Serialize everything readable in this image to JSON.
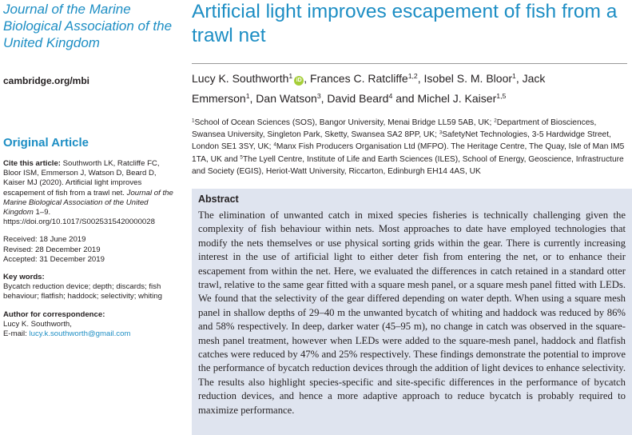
{
  "journal": {
    "name": "Journal of the Marine Biological Association of the United Kingdom",
    "url": "cambridge.org/mbi"
  },
  "article_type": "Original Article",
  "citation": {
    "label": "Cite this article:",
    "text": "Southworth LK, Ratcliffe FC, Bloor ISM, Emmerson J, Watson D, Beard D, Kaiser MJ (2020). Artificial light improves escapement of fish from a trawl net.",
    "journal": "Journal of the Marine Biological Association of the United Kingdom",
    "rest": "1–9. https://doi.org/10.1017/S0025315420000028"
  },
  "dates": [
    "Received: 18 June 2019",
    "Revised: 28 December 2019",
    "Accepted: 31 December 2019"
  ],
  "keywords": {
    "label": "Key words:",
    "text": "Bycatch reduction device; depth; discards; fish behaviour; flatfish; haddock; selectivity; whiting"
  },
  "correspondence": {
    "label": "Author for correspondence:",
    "name": "Lucy K. Southworth,",
    "email_label": "E-mail:",
    "email": "lucy.k.southworth@gmail.com"
  },
  "title": "Artificial light improves escapement of fish from a trawl net",
  "authors": [
    {
      "name": "Lucy K. Southworth",
      "sup": "1",
      "orcid": true,
      "sep": ","
    },
    {
      "name": "Frances C. Ratcliffe",
      "sup": "1,2",
      "sep": ","
    },
    {
      "name": "Isobel S. M. Bloor",
      "sup": "1",
      "sep": ","
    },
    {
      "name": "Jack Emmerson",
      "sup": "1",
      "sep": ","
    },
    {
      "name": "Dan Watson",
      "sup": "3",
      "sep": ","
    },
    {
      "name": "David Beard",
      "sup": "4",
      "sep": "and"
    },
    {
      "name": "Michel J. Kaiser",
      "sup": "1,5"
    }
  ],
  "affiliations": [
    {
      "sup": "1",
      "text": "School of Ocean Sciences (SOS), Bangor University, Menai Bridge LL59 5AB, UK;"
    },
    {
      "sup": "2",
      "text": "Department of Biosciences, Swansea University, Singleton Park, Sketty, Swansea SA2 8PP, UK;"
    },
    {
      "sup": "3",
      "text": "SafetyNet Technologies, 3-5 Hardwidge Street, London SE1 3SY, UK;"
    },
    {
      "sup": "4",
      "text": "Manx Fish Producers Organisation Ltd (MFPO). The Heritage Centre, The Quay, Isle of Man IM5 1TA, UK and"
    },
    {
      "sup": "5",
      "text": "The Lyell Centre, Institute of Life and Earth Sciences (ILES), School of Energy, Geoscience, Infrastructure and Society (EGIS), Heriot-Watt University, Riccarton, Edinburgh EH14 4AS, UK"
    }
  ],
  "abstract": {
    "heading": "Abstract",
    "text": "The elimination of unwanted catch in mixed species fisheries is technically challenging given the complexity of fish behaviour within nets. Most approaches to date have employed technologies that modify the nets themselves or use physical sorting grids within the gear. There is currently increasing interest in the use of artificial light to either deter fish from entering the net, or to enhance their escapement from within the net. Here, we evaluated the differences in catch retained in a standard otter trawl, relative to the same gear fitted with a square mesh panel, or a square mesh panel fitted with LEDs. We found that the selectivity of the gear differed depending on water depth. When using a square mesh panel in shallow depths of 29–40 m the unwanted bycatch of whiting and haddock was reduced by 86% and 58% respectively. In deep, darker water (45–95 m), no change in catch was observed in the square-mesh panel treatment, however when LEDs were added to the square-mesh panel, haddock and flatfish catches were reduced by 47% and 25% respectively. These findings demonstrate the potential to improve the performance of bycatch reduction devices through the addition of light devices to enhance selectivity. The results also highlight species-specific and site-specific differences in the performance of bycatch reduction devices, and hence a more adaptive approach to reduce bycatch is probably required to maximize performance."
  }
}
